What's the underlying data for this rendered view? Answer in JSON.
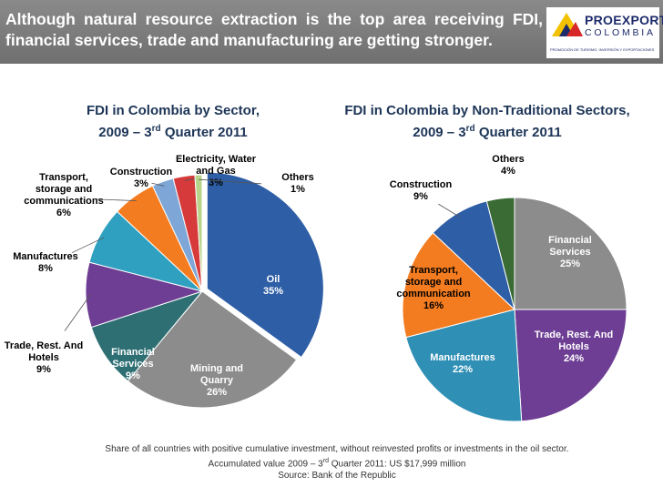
{
  "header": {
    "title": "Although natural resource extraction is the top area receiving FDI, financial services, trade and manufacturing are getting stronger."
  },
  "logo": {
    "line1": "PROEXPORT",
    "line2": "COLOMBIA",
    "tagline": "PROMOCIÓN DE TURISMO, INVERSIÓN Y EXPORTACIONES"
  },
  "chart_data": [
    {
      "type": "pie",
      "title_line1": "FDI in Colombia by Sector,",
      "title_line2_pre": "2009 – 3",
      "title_line2_sup": "rd",
      "title_line2_post": " Quarter 2011",
      "slices": [
        {
          "name": "Oil",
          "value": 35,
          "label": [
            "Oil",
            "35%"
          ],
          "color": "#2e5ea6"
        },
        {
          "name": "Mining and Quarry",
          "value": 26,
          "label": [
            "Mining and",
            "Quarry",
            "26%"
          ],
          "color": "#8c8c8c"
        },
        {
          "name": "Financial Services",
          "value": 9,
          "label": [
            "Financial",
            "Services",
            "9%"
          ],
          "color": "#2e6f74"
        },
        {
          "name": "Trade, Rest. And Hotels",
          "value": 9,
          "label": [
            "Trade, Rest. And",
            "Hotels",
            "9%"
          ],
          "color": "#6d3e93"
        },
        {
          "name": "Manufactures",
          "value": 8,
          "label": [
            "Manufactures",
            "8%"
          ],
          "color": "#2fa0bf"
        },
        {
          "name": "Transport, storage and communications",
          "value": 6,
          "label": [
            "Transport,",
            "storage and",
            "communications",
            "6%"
          ],
          "color": "#f47c20"
        },
        {
          "name": "Construction",
          "value": 3,
          "label": [
            "Construction",
            "3%"
          ],
          "color": "#7ea6d6"
        },
        {
          "name": "Electricity, Water and Gas",
          "value": 3,
          "label": [
            "Electricity, Water",
            "and Gas",
            "3%"
          ],
          "color": "#d63a3a"
        },
        {
          "name": "Others",
          "value": 1,
          "label": [
            "Others",
            "1%"
          ],
          "color": "#b8d48a"
        }
      ]
    },
    {
      "type": "pie",
      "title_line1": "FDI in Colombia by Non-Traditional Sectors,",
      "title_line2_pre": "2009 – 3",
      "title_line2_sup": "rd",
      "title_line2_post": " Quarter 2011",
      "slices": [
        {
          "name": "Financial Services",
          "value": 25,
          "label": [
            "Financial",
            "Services",
            "25%"
          ],
          "color": "#8c8c8c"
        },
        {
          "name": "Trade, Rest. And Hotels",
          "value": 24,
          "label": [
            "Trade, Rest. And",
            "Hotels",
            "24%"
          ],
          "color": "#6d3e93"
        },
        {
          "name": "Manufactures",
          "value": 22,
          "label": [
            "Manufactures",
            "22%"
          ],
          "color": "#2f8fb5"
        },
        {
          "name": "Transport, storage and communication",
          "value": 16,
          "label": [
            "Transport,",
            "storage and",
            "communication",
            "16%"
          ],
          "color": "#f47c20"
        },
        {
          "name": "Construction",
          "value": 9,
          "label": [
            "Construction",
            "9%"
          ],
          "color": "#2e5ea6"
        },
        {
          "name": "Others",
          "value": 4,
          "label": [
            "Others",
            "4%"
          ],
          "color": "#3a6b35"
        }
      ]
    }
  ],
  "footer": {
    "line1": "Share of all countries with positive cumulative investment, without reinvested profits or investments in the oil sector.",
    "line2_pre": "Accumulated value 2009 – 3",
    "line2_sup": "rd",
    "line2_post": " Quarter 2011: US $17,999 million",
    "line3": "Source: Bank of the Republic"
  }
}
